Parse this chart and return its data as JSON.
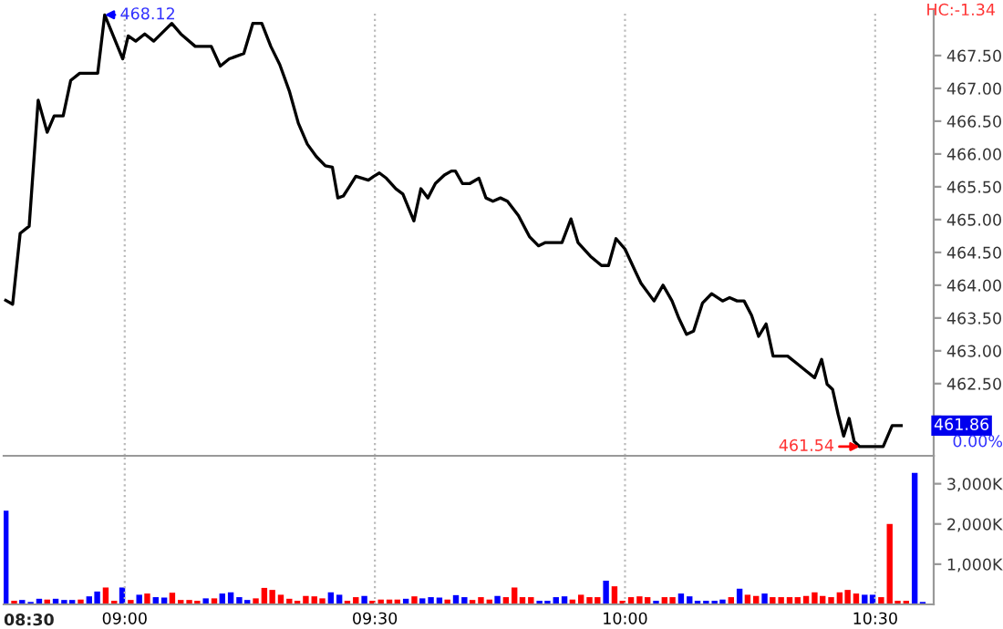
{
  "chart_data": [
    {
      "type": "line",
      "color": "#000000",
      "grid": "x",
      "tick_labels": "y",
      "marker": "none",
      "line_style": "solid",
      "x": [
        8.762,
        8.776,
        8.791,
        8.809,
        8.827,
        8.845,
        8.859,
        8.877,
        8.892,
        8.91,
        8.946,
        8.96,
        8.996,
        9.007,
        9.022,
        9.04,
        9.058,
        9.094,
        9.112,
        9.141,
        9.159,
        9.173,
        9.191,
        9.209,
        9.238,
        9.256,
        9.274,
        9.292,
        9.31,
        9.329,
        9.347,
        9.365,
        9.383,
        9.401,
        9.415,
        9.426,
        9.437,
        9.448,
        9.462,
        9.487,
        9.498,
        9.509,
        9.523,
        9.542,
        9.556,
        9.578,
        9.592,
        9.606,
        9.621,
        9.639,
        9.653,
        9.661,
        9.675,
        9.69,
        9.708,
        9.722,
        9.736,
        9.751,
        9.765,
        9.787,
        9.809,
        9.827,
        9.841,
        9.874,
        9.892,
        9.906,
        9.931,
        9.953,
        9.967,
        9.982,
        10.0,
        10.022,
        10.032,
        10.058,
        10.076,
        10.094,
        10.108,
        10.123,
        10.137,
        10.155,
        10.173,
        10.195,
        10.209,
        10.224,
        10.238,
        10.253,
        10.267,
        10.282,
        10.296,
        10.325,
        10.343,
        10.361,
        10.379,
        10.393,
        10.404,
        10.415,
        10.426,
        10.437,
        10.448,
        10.458,
        10.469,
        10.516,
        10.534,
        10.552
      ],
      "values": [
        463.77,
        463.71,
        464.79,
        464.9,
        466.82,
        466.33,
        466.58,
        466.58,
        467.12,
        467.23,
        467.23,
        468.12,
        467.45,
        467.8,
        467.72,
        467.83,
        467.72,
        467.99,
        467.83,
        467.64,
        467.64,
        467.64,
        467.34,
        467.45,
        467.53,
        467.99,
        467.99,
        467.64,
        467.36,
        466.96,
        466.47,
        466.15,
        465.96,
        465.82,
        465.8,
        465.33,
        465.36,
        465.49,
        465.66,
        465.6,
        465.66,
        465.71,
        465.63,
        465.47,
        465.39,
        464.98,
        465.47,
        465.33,
        465.55,
        465.68,
        465.74,
        465.74,
        465.55,
        465.55,
        465.63,
        465.33,
        465.28,
        465.33,
        465.28,
        465.06,
        464.74,
        464.6,
        464.65,
        464.65,
        465.01,
        464.65,
        464.44,
        464.3,
        464.3,
        464.71,
        464.55,
        464.19,
        464.03,
        463.76,
        464.0,
        463.76,
        463.49,
        463.25,
        463.3,
        463.73,
        463.87,
        463.76,
        463.81,
        463.76,
        463.76,
        463.54,
        463.22,
        463.41,
        462.92,
        462.92,
        462.81,
        462.7,
        462.59,
        462.87,
        462.49,
        462.41,
        462.03,
        461.7,
        461.97,
        461.62,
        461.54,
        461.54,
        461.86,
        461.86
      ],
      "xlim": [
        8.758,
        10.617
      ],
      "xticks": [
        9,
        9.5,
        10,
        10.5
      ],
      "ylim": [
        461.4,
        468.18
      ],
      "yticks": [
        {
          "value": 462,
          "label": null
        },
        {
          "value": 462.5,
          "label": "462.50"
        },
        {
          "value": 463,
          "label": "463.00"
        },
        {
          "value": 463.5,
          "label": "463.50"
        },
        {
          "value": 464,
          "label": "464.00"
        },
        {
          "value": 464.5,
          "label": "464.50"
        },
        {
          "value": 465,
          "label": "465.00"
        },
        {
          "value": 465.5,
          "label": "465.50"
        },
        {
          "value": 466,
          "label": "466.00"
        },
        {
          "value": 466.5,
          "label": "466.50"
        },
        {
          "value": 467,
          "label": "467.00"
        },
        {
          "value": 467.5,
          "label": "467.50"
        }
      ],
      "annotations": [
        {
          "text": "468.12",
          "x": 8.96,
          "y": 468.12
        },
        {
          "text": "461.54",
          "x": 10.469,
          "y": 461.54
        },
        "HC:-1.34",
        {
          "text": "461.86",
          "x": 10.552,
          "y": 461.86
        },
        "0.00%"
      ]
    },
    {
      "type": "bar",
      "grid": "x",
      "x": [
        8.762,
        8.779,
        8.795,
        8.812,
        8.829,
        8.845,
        8.862,
        8.879,
        8.895,
        8.912,
        8.929,
        8.945,
        8.962,
        8.979,
        8.995,
        9.012,
        9.029,
        9.045,
        9.062,
        9.079,
        9.095,
        9.112,
        9.129,
        9.145,
        9.162,
        9.179,
        9.195,
        9.212,
        9.229,
        9.245,
        9.262,
        9.279,
        9.295,
        9.312,
        9.329,
        9.345,
        9.362,
        9.379,
        9.395,
        9.412,
        9.429,
        9.445,
        9.462,
        9.479,
        9.495,
        9.512,
        9.529,
        9.545,
        9.562,
        9.579,
        9.595,
        9.612,
        9.629,
        9.645,
        9.662,
        9.679,
        9.695,
        9.712,
        9.729,
        9.745,
        9.762,
        9.779,
        9.795,
        9.812,
        9.829,
        9.845,
        9.862,
        9.879,
        9.895,
        9.912,
        9.929,
        9.945,
        9.962,
        9.979,
        9.995,
        10.012,
        10.029,
        10.045,
        10.062,
        10.079,
        10.095,
        10.112,
        10.129,
        10.145,
        10.162,
        10.179,
        10.195,
        10.212,
        10.229,
        10.245,
        10.262,
        10.279,
        10.295,
        10.312,
        10.329,
        10.345,
        10.362,
        10.379,
        10.395,
        10.412,
        10.429,
        10.445,
        10.462,
        10.479,
        10.495,
        10.512,
        10.529,
        10.545,
        10.562,
        10.579,
        10.595
      ],
      "values": [
        2330,
        90,
        110,
        60,
        140,
        120,
        140,
        110,
        110,
        120,
        200,
        320,
        420,
        90,
        420,
        110,
        240,
        270,
        180,
        170,
        290,
        110,
        110,
        90,
        150,
        150,
        270,
        300,
        180,
        110,
        150,
        410,
        360,
        240,
        140,
        90,
        210,
        200,
        150,
        300,
        240,
        90,
        180,
        210,
        90,
        120,
        120,
        120,
        140,
        200,
        150,
        180,
        170,
        120,
        230,
        180,
        110,
        180,
        120,
        210,
        180,
        420,
        180,
        180,
        90,
        90,
        180,
        200,
        120,
        240,
        180,
        180,
        590,
        450,
        90,
        180,
        200,
        180,
        90,
        180,
        180,
        270,
        200,
        90,
        90,
        90,
        120,
        180,
        390,
        240,
        210,
        270,
        180,
        180,
        180,
        180,
        210,
        300,
        210,
        180,
        300,
        360,
        270,
        240,
        240,
        180,
        2000,
        90,
        90,
        3270,
        60
      ],
      "colors": [
        "#0000ff",
        "#ff0000",
        "#0000ff",
        "#0000ff",
        "#0000ff",
        "#ff0000",
        "#0000ff",
        "#0000ff",
        "#0000ff",
        "#ff0000",
        "#0000ff",
        "#0000ff",
        "#ff0000",
        "#ff0000",
        "#0000ff",
        "#ff0000",
        "#0000ff",
        "#ff0000",
        "#0000ff",
        "#0000ff",
        "#ff0000",
        "#ff0000",
        "#ff0000",
        "#ff0000",
        "#0000ff",
        "#ff0000",
        "#0000ff",
        "#0000ff",
        "#0000ff",
        "#0000ff",
        "#ff0000",
        "#ff0000",
        "#ff0000",
        "#ff0000",
        "#ff0000",
        "#ff0000",
        "#ff0000",
        "#ff0000",
        "#ff0000",
        "#0000ff",
        "#0000ff",
        "#ff0000",
        "#ff0000",
        "#0000ff",
        "#ff0000",
        "#ff0000",
        "#ff0000",
        "#ff0000",
        "#0000ff",
        "#ff0000",
        "#0000ff",
        "#0000ff",
        "#0000ff",
        "#ff0000",
        "#0000ff",
        "#0000ff",
        "#ff0000",
        "#ff0000",
        "#ff0000",
        "#0000ff",
        "#ff0000",
        "#ff0000",
        "#ff0000",
        "#ff0000",
        "#0000ff",
        "#0000ff",
        "#0000ff",
        "#0000ff",
        "#ff0000",
        "#ff0000",
        "#ff0000",
        "#ff0000",
        "#0000ff",
        "#ff0000",
        "#ff0000",
        "#ff0000",
        "#ff0000",
        "#ff0000",
        "#0000ff",
        "#ff0000",
        "#ff0000",
        "#0000ff",
        "#0000ff",
        "#0000ff",
        "#0000ff",
        "#0000ff",
        "#0000ff",
        "#ff0000",
        "#0000ff",
        "#ff0000",
        "#ff0000",
        "#0000ff",
        "#ff0000",
        "#ff0000",
        "#ff0000",
        "#ff0000",
        "#ff0000",
        "#ff0000",
        "#ff0000",
        "#ff0000",
        "#ff0000",
        "#ff0000",
        "#ff0000",
        "#0000ff",
        "#0000ff",
        "#ff0000",
        "#ff0000",
        "#ff0000",
        "#ff0000",
        "#0000ff",
        "#0000ff"
      ],
      "xlim": [
        8.758,
        10.617
      ],
      "xticks": [
        {
          "value": 9,
          "label": "09:00"
        },
        {
          "value": 9.5,
          "label": "09:30"
        },
        {
          "value": 10,
          "label": "10:00"
        },
        {
          "value": 10.5,
          "label": "10:30"
        }
      ],
      "ylim": [
        0,
        3695
      ],
      "yticks": [
        {
          "value": 1000,
          "label": "1,000K"
        },
        {
          "value": 2000,
          "label": "2,000K"
        },
        {
          "value": 3000,
          "label": "3,000K"
        }
      ],
      "annotations": [
        "08:30"
      ]
    }
  ]
}
